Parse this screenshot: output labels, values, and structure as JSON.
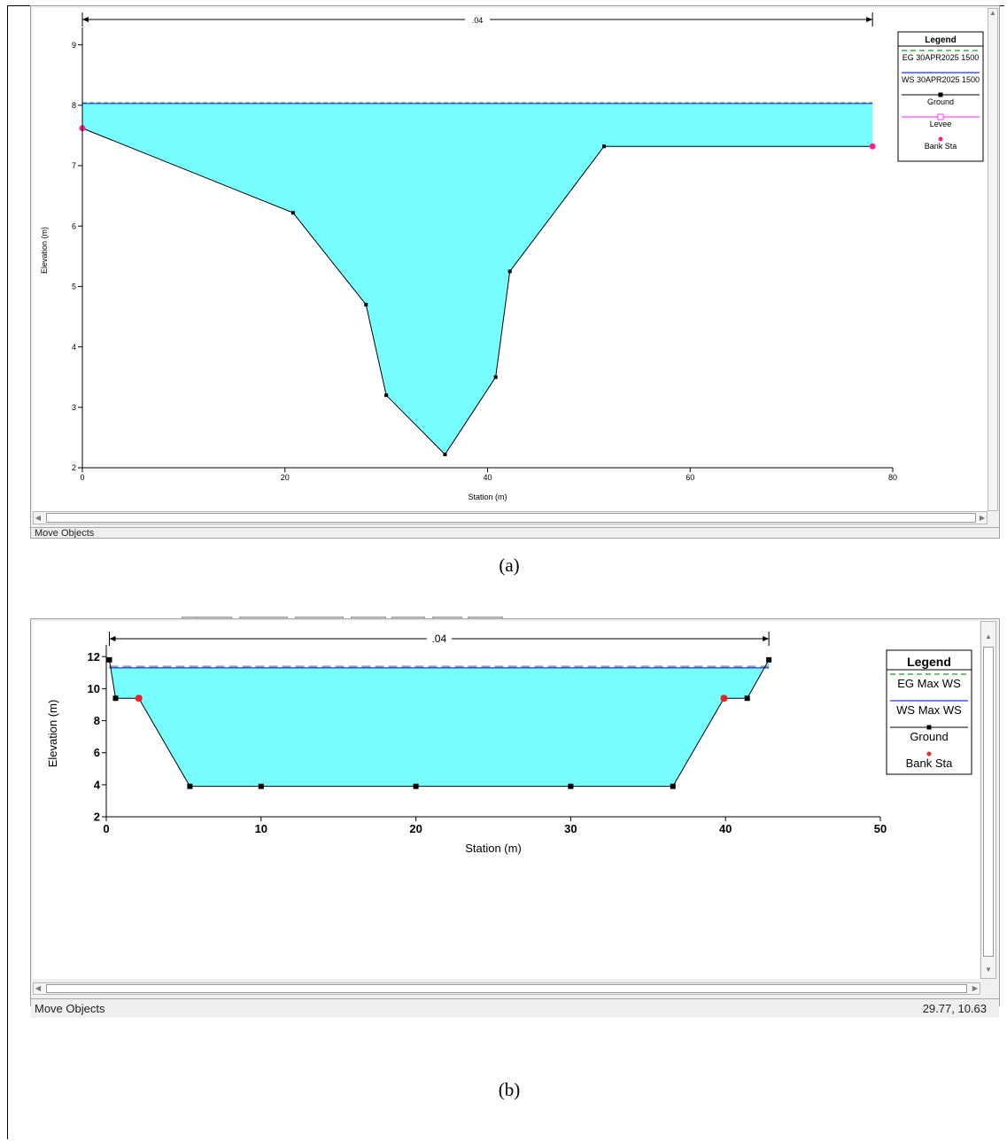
{
  "captions": {
    "a": "(a)",
    "b": "(b)"
  },
  "status": {
    "a": {
      "mode": "Move Objects"
    },
    "b": {
      "mode": "Move Objects",
      "coords": "29.77, 10.63"
    }
  },
  "colors": {
    "water": "#77ffff",
    "ground": "#000000",
    "eg_line": "#1b9e1b",
    "ws_line": "#2233ff",
    "levee": "#ff44ff",
    "bank_sta_a": "#ff2288",
    "bank_sta_b": "#ee2222"
  },
  "chart_data": [
    {
      "type": "area",
      "xlabel": "Station (m)",
      "ylabel": "Elevation (m)",
      "xlim": [
        0,
        80
      ],
      "ylim": [
        2,
        9.2
      ],
      "x_ticks": [
        0,
        20,
        40,
        60,
        80
      ],
      "y_ticks": [
        2,
        3,
        4,
        5,
        6,
        7,
        8,
        9
      ],
      "grid": false,
      "legend_position": "top-right",
      "legend_title": "Legend",
      "legend": [
        "EG 30APR2025 1500",
        "WS 30APR2025 1500",
        "Ground",
        "Levee",
        "Bank Sta"
      ],
      "mannings_n_label": ".04",
      "mannings_n_range": [
        0,
        78
      ],
      "water_surface": 8.03,
      "energy_grade": 8.04,
      "ground": {
        "x": [
          0,
          20.8,
          28,
          30,
          35.8,
          40.8,
          42.2,
          51.5,
          78
        ],
        "y": [
          7.62,
          6.22,
          4.7,
          3.2,
          2.22,
          3.5,
          5.25,
          7.32,
          7.32
        ]
      },
      "bank_stations": {
        "x": [
          0,
          78
        ],
        "y": [
          7.62,
          7.32
        ]
      }
    },
    {
      "type": "area",
      "xlabel": "Station (m)",
      "ylabel": "Elevation (m)",
      "xlim": [
        0,
        50
      ],
      "ylim": [
        2,
        12.4
      ],
      "x_ticks": [
        0,
        10,
        20,
        30,
        40,
        50
      ],
      "y_ticks": [
        2,
        4,
        6,
        8,
        10,
        12
      ],
      "grid": false,
      "legend_position": "top-right",
      "legend_title": "Legend",
      "legend": [
        "EG Max WS",
        "WS Max WS",
        "Ground",
        "Bank Sta"
      ],
      "mannings_n_label": ".04",
      "mannings_n_range": [
        0.2,
        42.8
      ],
      "water_surface": 11.3,
      "energy_grade": 11.38,
      "ground": {
        "x": [
          0.2,
          0.6,
          2.1,
          5.4,
          10,
          20,
          30,
          36.6,
          39.9,
          41.4,
          42.8
        ],
        "y": [
          11.8,
          9.4,
          9.4,
          3.9,
          3.9,
          3.9,
          3.9,
          3.9,
          9.4,
          9.4,
          11.8
        ]
      },
      "bank_stations": {
        "x": [
          2.1,
          39.9
        ],
        "y": [
          9.4,
          9.4
        ]
      }
    }
  ]
}
